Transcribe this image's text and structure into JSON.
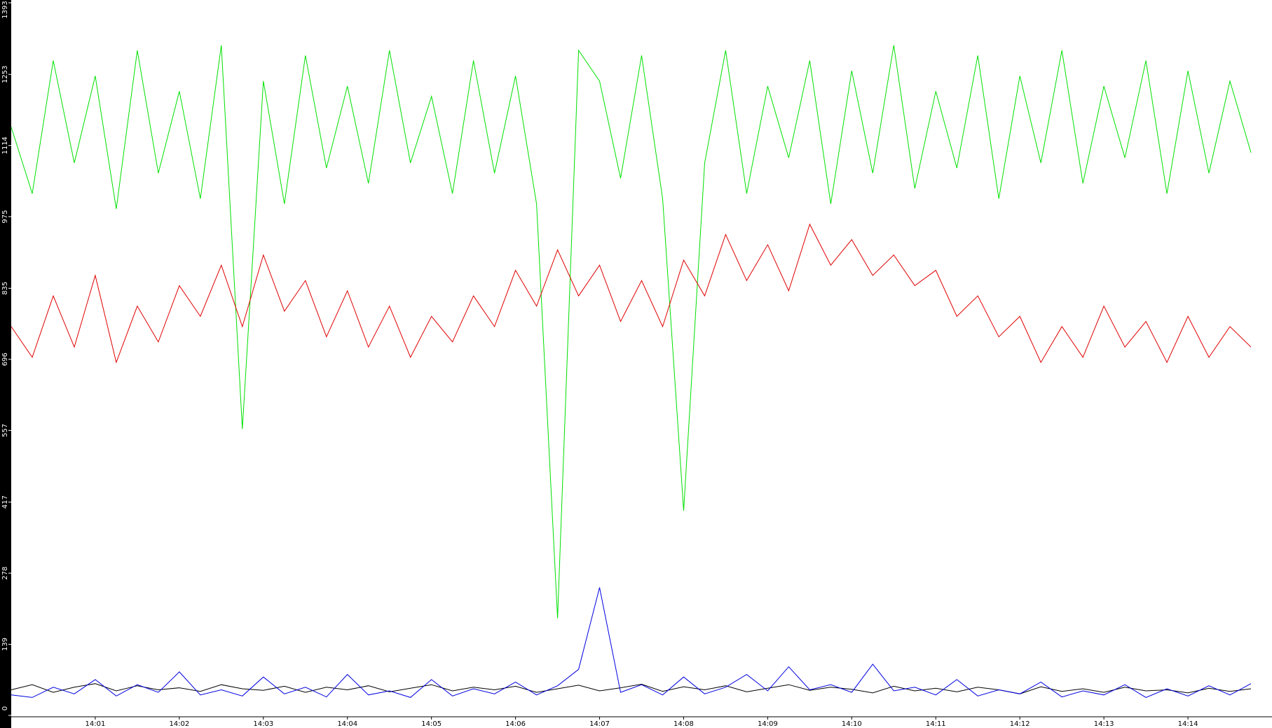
{
  "chart_data": {
    "type": "line",
    "categories": [
      null,
      null,
      null,
      null,
      "14:01",
      null,
      null,
      null,
      "14:02",
      null,
      null,
      null,
      "14:03",
      null,
      null,
      null,
      "14:04",
      null,
      null,
      null,
      "14:05",
      null,
      null,
      null,
      "14:06",
      null,
      null,
      null,
      "14:07",
      null,
      null,
      null,
      "14:08",
      null,
      null,
      null,
      "14:09",
      null,
      null,
      null,
      "14:10",
      null,
      null,
      null,
      "14:11",
      null,
      null,
      null,
      "14:12",
      null,
      null,
      null,
      "14:13",
      null,
      null,
      null,
      "14:14",
      null,
      null,
      null
    ],
    "series": [
      {
        "color": "#00e000",
        "values": [
          1150,
          1020,
          1280,
          1080,
          1250,
          990,
          1300,
          1060,
          1220,
          1010,
          1310,
          560,
          1240,
          1000,
          1290,
          1070,
          1230,
          1040,
          1300,
          1080,
          1210,
          1020,
          1280,
          1060,
          1250,
          1000,
          190,
          1300,
          1240,
          1050,
          1290,
          1010,
          400,
          1080,
          1300,
          1020,
          1230,
          1090,
          1280,
          1000,
          1260,
          1060,
          1310,
          1030,
          1220,
          1070,
          1290,
          1010,
          1250,
          1080,
          1300,
          1040,
          1230,
          1090,
          1280,
          1020,
          1260,
          1060,
          1240,
          1100
        ]
      },
      {
        "color": "#e00000",
        "values": [
          760,
          700,
          820,
          720,
          860,
          690,
          800,
          730,
          840,
          780,
          880,
          760,
          900,
          790,
          850,
          740,
          830,
          720,
          800,
          700,
          780,
          730,
          820,
          760,
          870,
          800,
          910,
          820,
          880,
          770,
          850,
          760,
          890,
          820,
          940,
          850,
          920,
          830,
          960,
          880,
          930,
          860,
          900,
          840,
          870,
          780,
          820,
          740,
          780,
          690,
          760,
          700,
          800,
          720,
          770,
          690,
          780,
          700,
          760,
          720
        ]
      },
      {
        "color": "#000000",
        "values": [
          50,
          60,
          45,
          55,
          62,
          48,
          58,
          50,
          54,
          47,
          60,
          52,
          49,
          57,
          45,
          55,
          50,
          58,
          46,
          53,
          60,
          48,
          55,
          50,
          57,
          45,
          52,
          59,
          48,
          54,
          61,
          47,
          56,
          50,
          58,
          46,
          53,
          60,
          49,
          55,
          51,
          44,
          57,
          48,
          53,
          46,
          55,
          50,
          42,
          56,
          47,
          52,
          45,
          55,
          48,
          50,
          44,
          53,
          47,
          52
        ]
      },
      {
        "color": "#0000e0",
        "values": [
          40,
          35,
          55,
          42,
          70,
          38,
          60,
          45,
          85,
          40,
          50,
          38,
          75,
          42,
          55,
          36,
          80,
          40,
          48,
          35,
          70,
          38,
          52,
          42,
          65,
          40,
          58,
          90,
          250,
          45,
          60,
          40,
          75,
          42,
          55,
          80,
          48,
          95,
          50,
          60,
          45,
          100,
          48,
          55,
          40,
          70,
          38,
          50,
          42,
          65,
          36,
          48,
          40,
          60,
          35,
          52,
          38,
          58,
          40,
          62
        ]
      }
    ],
    "ylim": [
      0,
      1393
    ],
    "yticks": [
      0,
      139,
      278,
      417,
      557,
      696,
      835,
      975,
      1114,
      1253,
      1393
    ]
  }
}
